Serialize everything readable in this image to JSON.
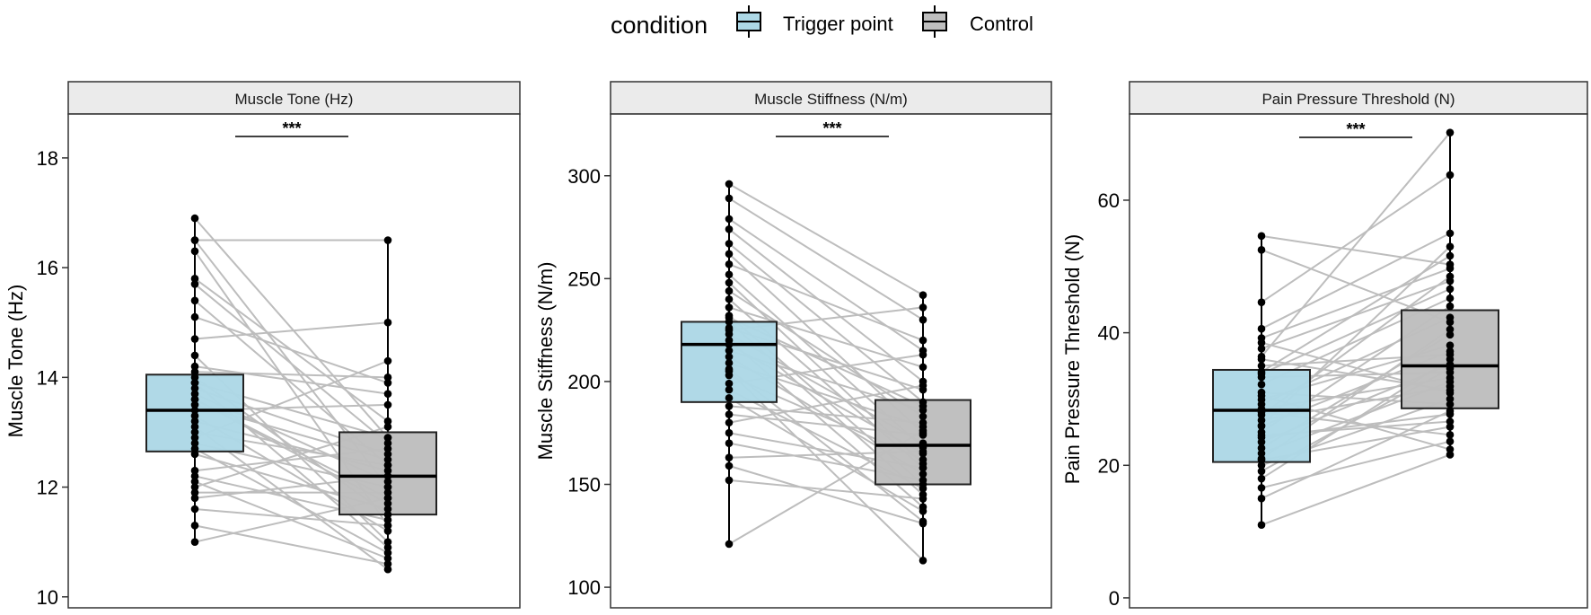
{
  "legend": {
    "title": "condition",
    "items": [
      {
        "label": "Trigger point",
        "fill": "#add8e6"
      },
      {
        "label": "Control",
        "fill": "#bebebe"
      }
    ]
  },
  "colors": {
    "trigger": "#add8e6",
    "control": "#bebebe",
    "pair_line": "#bdbdbd",
    "point": "#000000",
    "strip": "#ebebeb"
  },
  "chart_data": [
    {
      "type": "boxplot",
      "title": "Muscle Tone (Hz)",
      "ylabel": "Muscle Tone (Hz)",
      "xlabel": "",
      "ylim": [
        9.8,
        18.8
      ],
      "yticks": [
        10,
        12,
        14,
        16,
        18
      ],
      "significance": "***",
      "categories": [
        "Trigger point",
        "Control"
      ],
      "boxes": [
        {
          "group": "Trigger point",
          "min": 11.0,
          "q1": 12.65,
          "median": 13.4,
          "q3": 14.05,
          "max": 16.9
        },
        {
          "group": "Control",
          "min": 10.5,
          "q1": 11.5,
          "median": 12.2,
          "q3": 13.0,
          "max": 16.5
        }
      ],
      "pairs": [
        [
          16.9,
          12.9
        ],
        [
          16.5,
          16.5
        ],
        [
          16.5,
          12.0
        ],
        [
          16.3,
          11.3
        ],
        [
          15.8,
          13.2
        ],
        [
          15.7,
          12.8
        ],
        [
          15.4,
          12.4
        ],
        [
          15.1,
          13.9
        ],
        [
          14.7,
          15.0
        ],
        [
          14.4,
          11.0
        ],
        [
          14.2,
          13.7
        ],
        [
          14.0,
          11.5
        ],
        [
          13.9,
          10.9
        ],
        [
          13.8,
          12.6
        ],
        [
          13.7,
          12.1
        ],
        [
          13.6,
          11.8
        ],
        [
          13.5,
          12.5
        ],
        [
          13.4,
          13.5
        ],
        [
          13.3,
          11.2
        ],
        [
          13.2,
          12.3
        ],
        [
          13.1,
          10.5
        ],
        [
          12.9,
          14.3
        ],
        [
          12.8,
          12.0
        ],
        [
          12.6,
          11.6
        ],
        [
          12.3,
          12.7
        ],
        [
          12.2,
          11.4
        ],
        [
          12.1,
          10.7
        ],
        [
          12.0,
          13.1
        ],
        [
          11.9,
          11.9
        ],
        [
          11.8,
          12.2
        ],
        [
          11.6,
          11.3
        ],
        [
          11.3,
          10.6
        ],
        [
          11.0,
          11.8
        ],
        [
          13.0,
          12.4
        ],
        [
          14.1,
          14.0
        ],
        [
          13.6,
          11.7
        ],
        [
          12.7,
          10.8
        ],
        [
          13.9,
          12.9
        ]
      ]
    },
    {
      "type": "boxplot",
      "title": "Muscle Stiffness (N/m)",
      "ylabel": "Muscle Stiffness (N/m)",
      "xlabel": "",
      "ylim": [
        90,
        330
      ],
      "yticks": [
        100,
        150,
        200,
        250,
        300
      ],
      "significance": "***",
      "categories": [
        "Trigger point",
        "Control"
      ],
      "boxes": [
        {
          "group": "Trigger point",
          "min": 121,
          "q1": 190,
          "median": 218,
          "q3": 229,
          "max": 296
        },
        {
          "group": "Control",
          "min": 113,
          "q1": 150,
          "median": 169,
          "q3": 191,
          "max": 243
        }
      ],
      "pairs": [
        [
          296,
          242
        ],
        [
          289,
          230
        ],
        [
          279,
          215
        ],
        [
          274,
          200
        ],
        [
          267,
          190
        ],
        [
          262,
          175
        ],
        [
          257,
          220
        ],
        [
          252,
          168
        ],
        [
          248,
          160
        ],
        [
          244,
          183
        ],
        [
          240,
          158
        ],
        [
          236,
          207
        ],
        [
          232,
          150
        ],
        [
          229,
          145
        ],
        [
          226,
          196
        ],
        [
          223,
          170
        ],
        [
          220,
          139
        ],
        [
          218,
          165
        ],
        [
          215,
          186
        ],
        [
          212,
          155
        ],
        [
          209,
          178
        ],
        [
          206,
          132
        ],
        [
          203,
          162
        ],
        [
          199,
          213
        ],
        [
          196,
          148
        ],
        [
          192,
          137
        ],
        [
          188,
          180
        ],
        [
          184,
          174
        ],
        [
          180,
          198
        ],
        [
          175,
          158
        ],
        [
          170,
          152
        ],
        [
          163,
          166
        ],
        [
          159,
          131
        ],
        [
          152,
          143
        ],
        [
          121,
          176
        ],
        [
          205,
          113
        ],
        [
          231,
          188
        ],
        [
          225,
          236
        ]
      ]
    },
    {
      "type": "boxplot",
      "title": "Pain Pressure Threshold (N)",
      "ylabel": "Pain Pressure Threshold (N)",
      "xlabel": "",
      "ylim": [
        -1.5,
        73
      ],
      "yticks": [
        0,
        20,
        40,
        60
      ],
      "significance": "***",
      "categories": [
        "Trigger point",
        "Control"
      ],
      "boxes": [
        {
          "group": "Trigger point",
          "min": 11,
          "q1": 20.5,
          "median": 28.3,
          "q3": 34.4,
          "max": 54.6
        },
        {
          "group": "Control",
          "min": 21.5,
          "q1": 28.6,
          "median": 35.0,
          "q3": 43.4,
          "max": 70.2
        }
      ],
      "pairs": [
        [
          54.6,
          50.3
        ],
        [
          52.5,
          41.6
        ],
        [
          44.6,
          63.8
        ],
        [
          40.6,
          55.0
        ],
        [
          39.2,
          49.7
        ],
        [
          38.5,
          30.9
        ],
        [
          37.6,
          47.8
        ],
        [
          36.4,
          70.2
        ],
        [
          35.0,
          36.7
        ],
        [
          34.1,
          51.6
        ],
        [
          33.3,
          34.0
        ],
        [
          32.2,
          45.2
        ],
        [
          31.0,
          29.2
        ],
        [
          29.9,
          38.1
        ],
        [
          29.2,
          42.3
        ],
        [
          28.5,
          33.2
        ],
        [
          27.6,
          48.5
        ],
        [
          26.8,
          31.9
        ],
        [
          25.9,
          37.2
        ],
        [
          25.0,
          44.0
        ],
        [
          24.2,
          27.7
        ],
        [
          23.5,
          35.2
        ],
        [
          22.6,
          39.7
        ],
        [
          21.8,
          32.6
        ],
        [
          20.8,
          25.8
        ],
        [
          20.0,
          30.0
        ],
        [
          19.1,
          34.6
        ],
        [
          18.0,
          36.0
        ],
        [
          16.6,
          23.6
        ],
        [
          15.0,
          28.2
        ],
        [
          11.0,
          21.6
        ],
        [
          30.5,
          22.4
        ],
        [
          26.0,
          53.0
        ],
        [
          33.8,
          46.6
        ],
        [
          24.5,
          26.6
        ],
        [
          21.0,
          40.5
        ],
        [
          36.0,
          31.3
        ],
        [
          28.0,
          24.6
        ]
      ]
    }
  ]
}
